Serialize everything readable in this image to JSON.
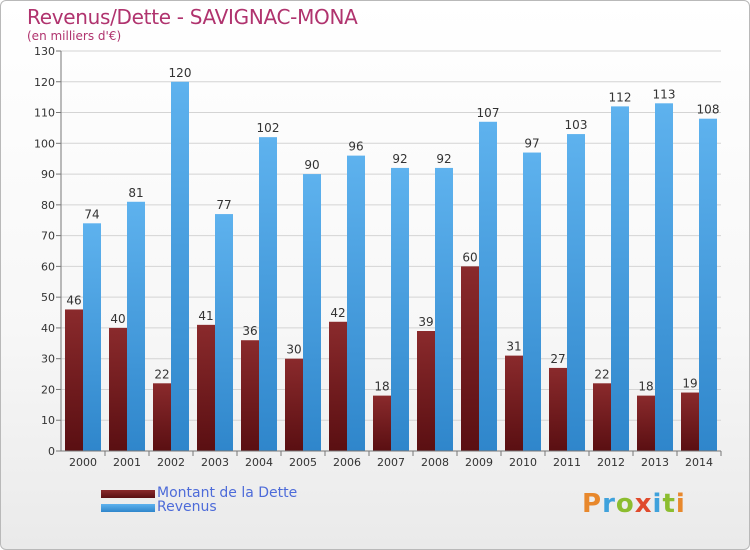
{
  "title": "Revenus/Dette - SAVIGNAC-MONA",
  "subtitle": "(en milliers d'€)",
  "colors": {
    "dette_dark": "#5a0f12",
    "dette_light": "#8a2a2c",
    "revenus_dark": "#2f86cb",
    "revenus_light": "#5eb2ee",
    "grid": "#d4d4d4",
    "axis_text": "#333333",
    "title": "#b0336e"
  },
  "legend": {
    "dette": "Montant de la Dette",
    "revenus": "Revenus"
  },
  "logo": {
    "letters": [
      "P",
      "r",
      "o",
      "x",
      "i",
      "t",
      "i"
    ],
    "colors": [
      "#e8882c",
      "#3fa2dc",
      "#8cbd2f",
      "#e04a2c",
      "#3fa2dc",
      "#8cbd2f",
      "#e8882c"
    ]
  },
  "chart_data": {
    "type": "bar",
    "title": "Revenus/Dette - SAVIGNAC-MONA",
    "ylabel": "(en milliers d'€)",
    "xlabel": "",
    "categories": [
      "2000",
      "2001",
      "2002",
      "2003",
      "2004",
      "2005",
      "2006",
      "2007",
      "2008",
      "2009",
      "2010",
      "2011",
      "2012",
      "2013",
      "2014"
    ],
    "series": [
      {
        "name": "Montant de la Dette",
        "values": [
          46,
          40,
          22,
          41,
          36,
          30,
          42,
          18,
          39,
          60,
          31,
          27,
          22,
          18,
          19
        ]
      },
      {
        "name": "Revenus",
        "values": [
          74,
          81,
          120,
          77,
          102,
          90,
          96,
          92,
          92,
          107,
          97,
          103,
          112,
          113,
          108
        ]
      }
    ],
    "ylim": [
      0,
      130
    ],
    "yticks": [
      0,
      10,
      20,
      30,
      40,
      50,
      60,
      70,
      80,
      90,
      100,
      110,
      120,
      130
    ],
    "grid": true,
    "legend_position": "bottom-left"
  }
}
